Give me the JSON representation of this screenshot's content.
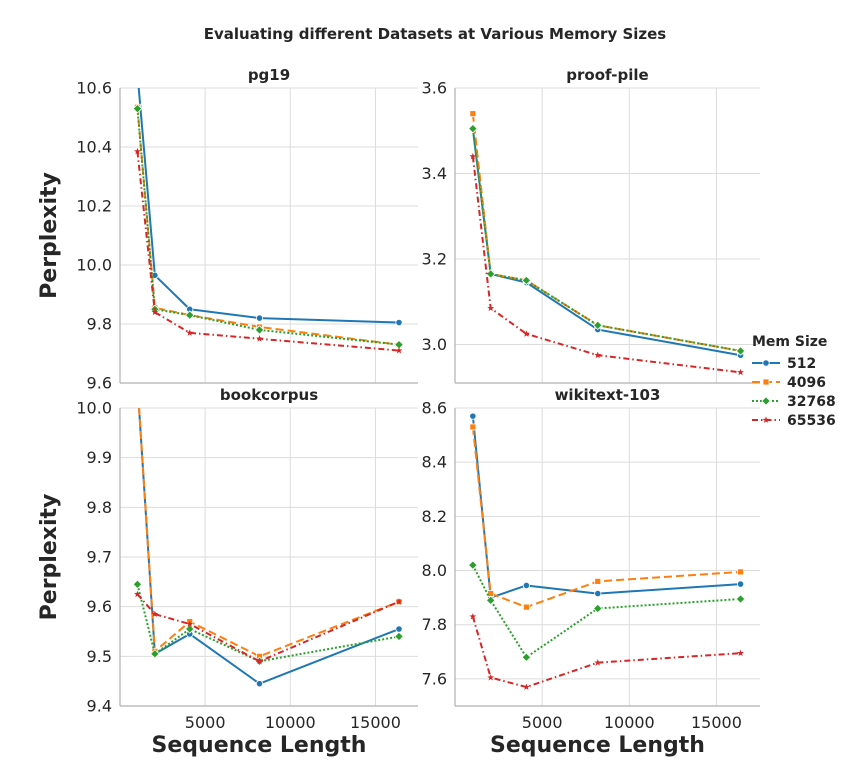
{
  "figure": {
    "suptitle": "Evaluating different Datasets at Various Memory Sizes",
    "legend_title": "Mem Size",
    "legend_placement": "right"
  },
  "colors": {
    "512": "#1f77b4",
    "4096": "#ff7f0e",
    "32768": "#2ca02c",
    "65536": "#d62728"
  },
  "chart_data": [
    {
      "type": "line",
      "title": "pg19",
      "xlabel": "",
      "ylabel": "Perplexity",
      "xlim": [
        0,
        17500
      ],
      "ylim": [
        9.6,
        10.6
      ],
      "yticks": [
        9.6,
        9.8,
        10.0,
        10.2,
        10.4,
        10.6
      ],
      "xticks": [],
      "series": [
        {
          "name": "512",
          "x": [
            1024,
            2048,
            4096,
            8192,
            16384
          ],
          "y": [
            10.65,
            9.965,
            9.85,
            9.82,
            9.805
          ]
        },
        {
          "name": "4096",
          "x": [
            1024,
            2048,
            4096,
            8192,
            16384
          ],
          "y": [
            10.535,
            9.855,
            9.83,
            9.79,
            9.73
          ]
        },
        {
          "name": "32768",
          "x": [
            1024,
            2048,
            4096,
            8192,
            16384
          ],
          "y": [
            10.53,
            9.85,
            9.83,
            9.78,
            9.73
          ]
        },
        {
          "name": "65536",
          "x": [
            1024,
            2048,
            4096,
            8192,
            16384
          ],
          "y": [
            10.385,
            9.84,
            9.77,
            9.75,
            9.71
          ]
        }
      ]
    },
    {
      "type": "line",
      "title": "proof-pile",
      "xlabel": "",
      "ylabel": "",
      "xlim": [
        0,
        17500
      ],
      "ylim": [
        2.91,
        3.6
      ],
      "yticks": [
        3.0,
        3.2,
        3.4,
        3.6
      ],
      "xticks": [],
      "series": [
        {
          "name": "512",
          "x": [
            1024,
            2048,
            4096,
            8192,
            16384
          ],
          "y": [
            3.505,
            3.165,
            3.145,
            3.035,
            2.975
          ]
        },
        {
          "name": "4096",
          "x": [
            1024,
            2048,
            4096,
            8192,
            16384
          ],
          "y": [
            3.54,
            3.165,
            3.15,
            3.045,
            2.985
          ]
        },
        {
          "name": "32768",
          "x": [
            1024,
            2048,
            4096,
            8192,
            16384
          ],
          "y": [
            3.505,
            3.165,
            3.15,
            3.045,
            2.985
          ]
        },
        {
          "name": "65536",
          "x": [
            1024,
            2048,
            4096,
            8192,
            16384
          ],
          "y": [
            3.44,
            3.085,
            3.025,
            2.975,
            2.935
          ]
        }
      ]
    },
    {
      "type": "line",
      "title": "bookcorpus",
      "xlabel": "Sequence Length",
      "ylabel": "Perplexity",
      "xlim": [
        0,
        17500
      ],
      "ylim": [
        9.4,
        10.0
      ],
      "yticks": [
        9.4,
        9.5,
        9.6,
        9.7,
        9.8,
        9.9,
        10.0
      ],
      "xticks": [
        5000,
        10000,
        15000
      ],
      "series": [
        {
          "name": "512",
          "x": [
            1024,
            2048,
            4096,
            8192,
            16384
          ],
          "y": [
            10.05,
            9.505,
            9.545,
            9.445,
            9.555
          ]
        },
        {
          "name": "4096",
          "x": [
            1024,
            2048,
            4096,
            8192,
            16384
          ],
          "y": [
            10.05,
            9.51,
            9.57,
            9.5,
            9.61
          ]
        },
        {
          "name": "32768",
          "x": [
            1024,
            2048,
            4096,
            8192,
            16384
          ],
          "y": [
            9.645,
            9.505,
            9.555,
            9.49,
            9.54
          ]
        },
        {
          "name": "65536",
          "x": [
            1024,
            2048,
            4096,
            8192,
            16384
          ],
          "y": [
            9.625,
            9.585,
            9.565,
            9.49,
            9.61
          ]
        }
      ]
    },
    {
      "type": "line",
      "title": "wikitext-103",
      "xlabel": "Sequence Length",
      "ylabel": "",
      "xlim": [
        0,
        17500
      ],
      "ylim": [
        7.5,
        8.6
      ],
      "yticks": [
        7.6,
        7.8,
        8.0,
        8.2,
        8.4,
        8.6
      ],
      "xticks": [
        5000,
        10000,
        15000
      ],
      "series": [
        {
          "name": "512",
          "x": [
            1024,
            2048,
            4096,
            8192,
            16384
          ],
          "y": [
            8.57,
            7.9,
            7.945,
            7.915,
            7.95
          ]
        },
        {
          "name": "4096",
          "x": [
            1024,
            2048,
            4096,
            8192,
            16384
          ],
          "y": [
            8.53,
            7.915,
            7.865,
            7.96,
            7.995
          ]
        },
        {
          "name": "32768",
          "x": [
            1024,
            2048,
            4096,
            8192,
            16384
          ],
          "y": [
            8.02,
            7.89,
            7.68,
            7.86,
            7.895
          ]
        },
        {
          "name": "65536",
          "x": [
            1024,
            2048,
            4096,
            8192,
            16384
          ],
          "y": [
            7.83,
            7.605,
            7.57,
            7.66,
            7.695
          ]
        }
      ]
    }
  ]
}
